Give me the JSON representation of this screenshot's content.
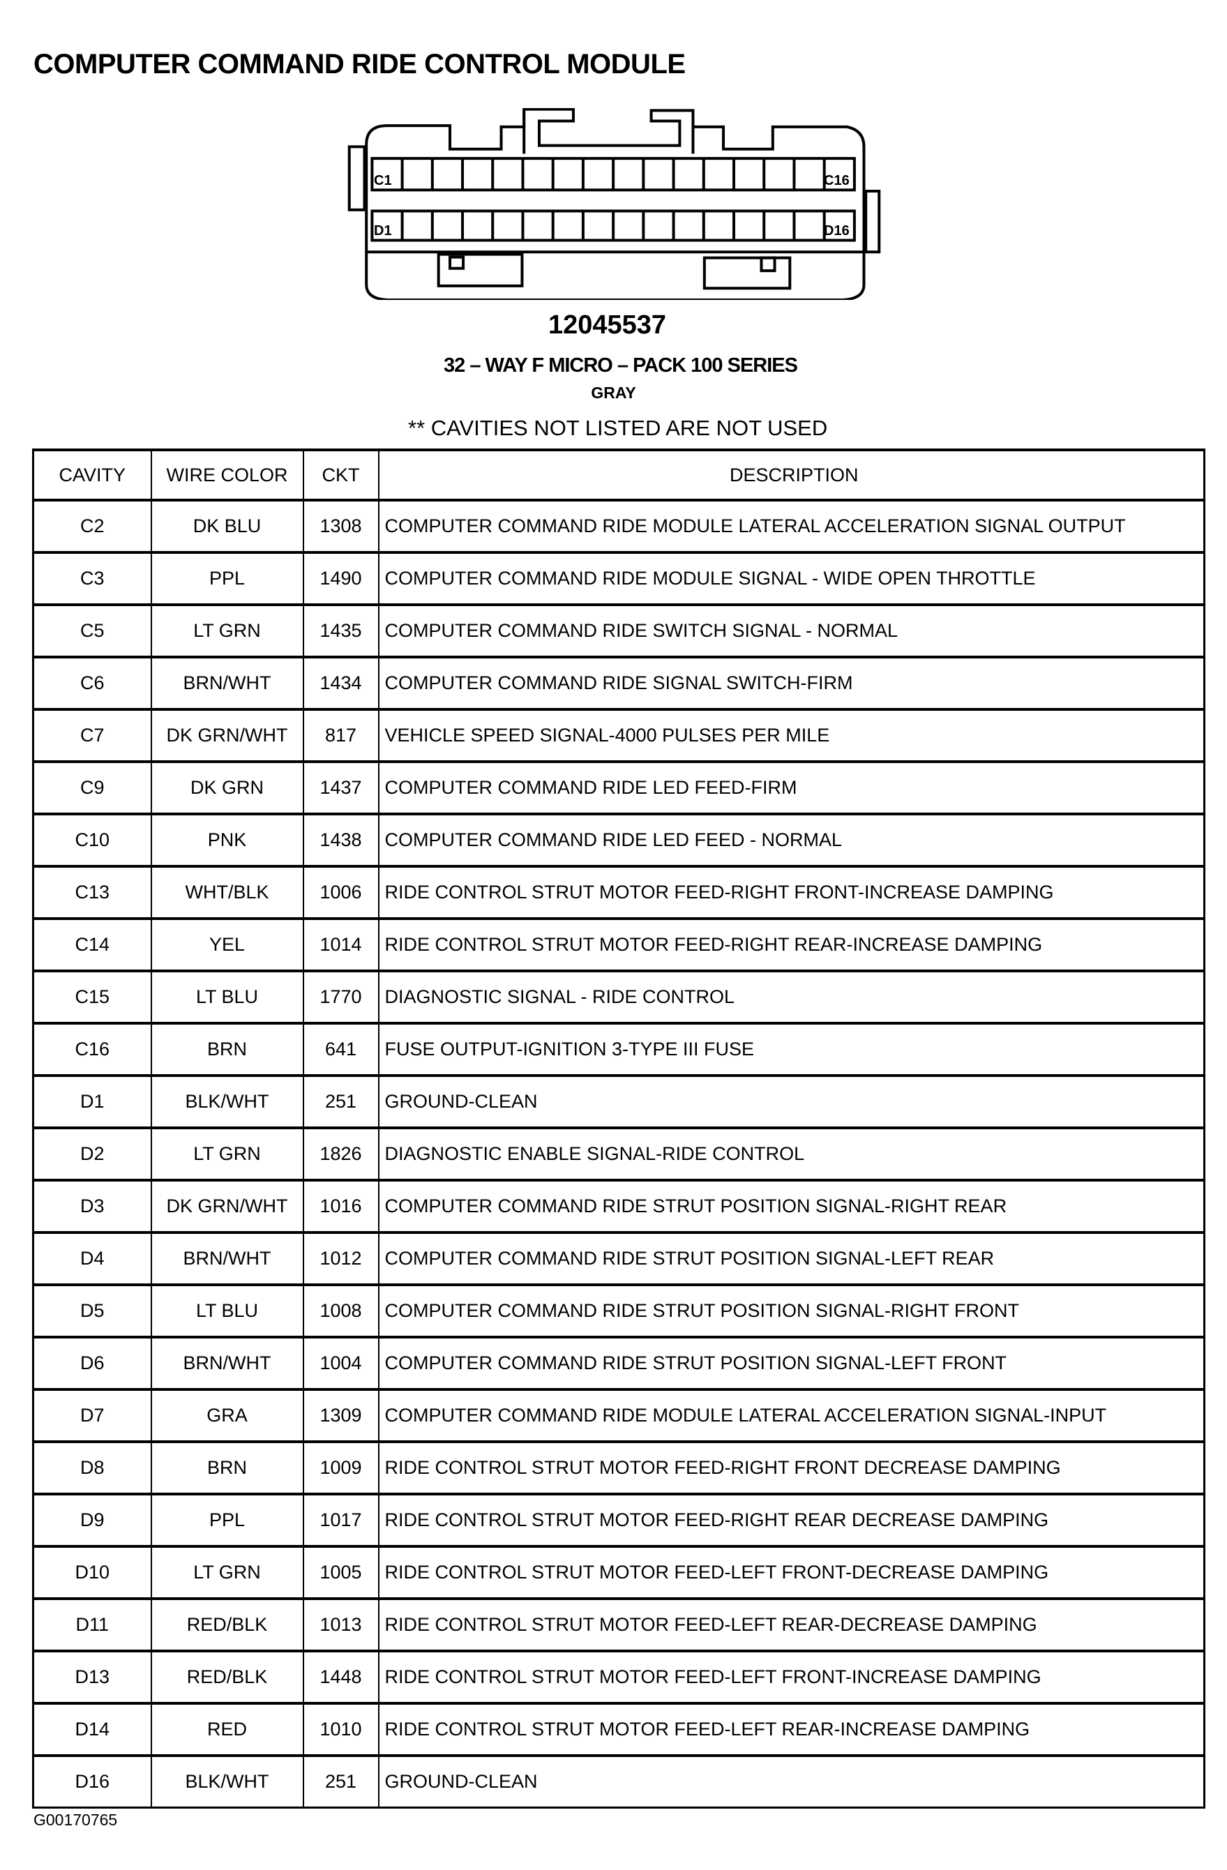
{
  "title": "COMPUTER COMMAND RIDE CONTROL MODULE",
  "connector": {
    "labels": {
      "c_first": "C1",
      "c_last": "C16",
      "d_first": "D1",
      "d_last": "D16"
    },
    "part_number": "12045537",
    "series": "32 – WAY F MICRO – PACK 100 SERIES",
    "color": "GRAY",
    "note": "** CAVITIES NOT LISTED ARE NOT USED"
  },
  "table": {
    "headers": {
      "cavity": "CAVITY",
      "wire_color": "WIRE COLOR",
      "ckt": "CKT",
      "description": "DESCRIPTION"
    },
    "rows": [
      {
        "cavity": "C2",
        "wire_color": "DK BLU",
        "ckt": "1308",
        "description": "COMPUTER COMMAND RIDE MODULE LATERAL ACCELERATION SIGNAL OUTPUT"
      },
      {
        "cavity": "C3",
        "wire_color": "PPL",
        "ckt": "1490",
        "description": "COMPUTER COMMAND RIDE MODULE SIGNAL - WIDE OPEN THROTTLE"
      },
      {
        "cavity": "C5",
        "wire_color": "LT GRN",
        "ckt": "1435",
        "description": "COMPUTER COMMAND RIDE SWITCH SIGNAL - NORMAL"
      },
      {
        "cavity": "C6",
        "wire_color": "BRN/WHT",
        "ckt": "1434",
        "description": "COMPUTER COMMAND RIDE SIGNAL SWITCH-FIRM"
      },
      {
        "cavity": "C7",
        "wire_color": "DK GRN/WHT",
        "ckt": "817",
        "description": "VEHICLE SPEED SIGNAL-4000 PULSES PER MILE"
      },
      {
        "cavity": "C9",
        "wire_color": "DK GRN",
        "ckt": "1437",
        "description": "COMPUTER COMMAND RIDE LED FEED-FIRM"
      },
      {
        "cavity": "C10",
        "wire_color": "PNK",
        "ckt": "1438",
        "description": "COMPUTER COMMAND RIDE LED FEED - NORMAL"
      },
      {
        "cavity": "C13",
        "wire_color": "WHT/BLK",
        "ckt": "1006",
        "description": "RIDE CONTROL STRUT MOTOR FEED-RIGHT FRONT-INCREASE DAMPING"
      },
      {
        "cavity": "C14",
        "wire_color": "YEL",
        "ckt": "1014",
        "description": "RIDE CONTROL STRUT MOTOR FEED-RIGHT REAR-INCREASE DAMPING"
      },
      {
        "cavity": "C15",
        "wire_color": "LT BLU",
        "ckt": "1770",
        "description": "DIAGNOSTIC SIGNAL - RIDE CONTROL"
      },
      {
        "cavity": "C16",
        "wire_color": "BRN",
        "ckt": "641",
        "description": "FUSE OUTPUT-IGNITION 3-TYPE III FUSE"
      },
      {
        "cavity": "D1",
        "wire_color": "BLK/WHT",
        "ckt": "251",
        "description": "GROUND-CLEAN"
      },
      {
        "cavity": "D2",
        "wire_color": "LT GRN",
        "ckt": "1826",
        "description": "DIAGNOSTIC ENABLE SIGNAL-RIDE CONTROL"
      },
      {
        "cavity": "D3",
        "wire_color": "DK GRN/WHT",
        "ckt": "1016",
        "description": "COMPUTER COMMAND RIDE STRUT POSITION SIGNAL-RIGHT REAR"
      },
      {
        "cavity": "D4",
        "wire_color": "BRN/WHT",
        "ckt": "1012",
        "description": "COMPUTER COMMAND RIDE STRUT POSITION SIGNAL-LEFT REAR"
      },
      {
        "cavity": "D5",
        "wire_color": "LT BLU",
        "ckt": "1008",
        "description": "COMPUTER COMMAND RIDE STRUT POSITION SIGNAL-RIGHT FRONT"
      },
      {
        "cavity": "D6",
        "wire_color": "BRN/WHT",
        "ckt": "1004",
        "description": "COMPUTER COMMAND RIDE STRUT POSITION SIGNAL-LEFT FRONT"
      },
      {
        "cavity": "D7",
        "wire_color": "GRA",
        "ckt": "1309",
        "description": "COMPUTER COMMAND RIDE MODULE LATERAL ACCELERATION SIGNAL-INPUT"
      },
      {
        "cavity": "D8",
        "wire_color": "BRN",
        "ckt": "1009",
        "description": "RIDE CONTROL STRUT MOTOR FEED-RIGHT FRONT DECREASE DAMPING"
      },
      {
        "cavity": "D9",
        "wire_color": "PPL",
        "ckt": "1017",
        "description": "RIDE CONTROL STRUT MOTOR FEED-RIGHT REAR DECREASE DAMPING"
      },
      {
        "cavity": "D10",
        "wire_color": "LT GRN",
        "ckt": "1005",
        "description": "RIDE CONTROL STRUT MOTOR FEED-LEFT FRONT-DECREASE DAMPING"
      },
      {
        "cavity": "D11",
        "wire_color": "RED/BLK",
        "ckt": "1013",
        "description": "RIDE CONTROL STRUT MOTOR FEED-LEFT REAR-DECREASE DAMPING"
      },
      {
        "cavity": "D13",
        "wire_color": "RED/BLK",
        "ckt": "1448",
        "description": "RIDE CONTROL STRUT MOTOR FEED-LEFT FRONT-INCREASE DAMPING"
      },
      {
        "cavity": "D14",
        "wire_color": "RED",
        "ckt": "1010",
        "description": "RIDE CONTROL STRUT MOTOR FEED-LEFT REAR-INCREASE DAMPING"
      },
      {
        "cavity": "D16",
        "wire_color": "BLK/WHT",
        "ckt": "251",
        "description": "GROUND-CLEAN"
      }
    ]
  },
  "footer": "G00170765"
}
